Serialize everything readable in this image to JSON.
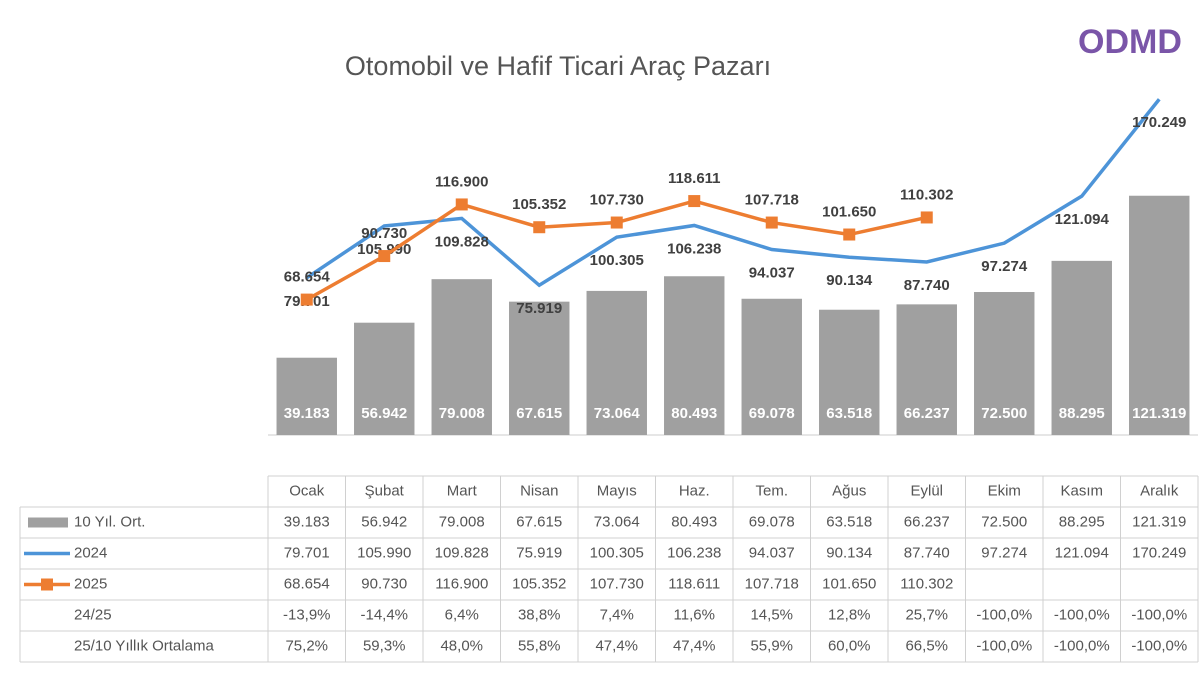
{
  "logo": "ODMD",
  "chart_data": {
    "type": "bar",
    "title": "Otomobil ve Hafif Ticari Araç Pazarı",
    "categories": [
      "Ocak",
      "Şubat",
      "Mart",
      "Nisan",
      "Mayıs",
      "Haz.",
      "Tem.",
      "Ağus",
      "Eylül",
      "Ekim",
      "Kasım",
      "Aralık"
    ],
    "ylim": [
      0,
      180000
    ],
    "series": [
      {
        "name": "10 Yıl. Ort.",
        "type": "bar",
        "color": "#a0a0a0",
        "values": [
          39183,
          56942,
          79008,
          67615,
          73064,
          80493,
          69078,
          63518,
          66237,
          72500,
          88295,
          121319
        ],
        "value_labels": [
          "39.183",
          "56.942",
          "79.008",
          "67.615",
          "73.064",
          "80.493",
          "69.078",
          "63.518",
          "66.237",
          "72.500",
          "88.295",
          "121.319"
        ]
      },
      {
        "name": "2024",
        "type": "line",
        "color": "#4d94d8",
        "values": [
          79701,
          105990,
          109828,
          75919,
          100305,
          106238,
          94037,
          90134,
          87740,
          97274,
          121094,
          170249
        ],
        "value_labels": [
          "79.701",
          "105.990",
          "109.828",
          "75.919",
          "100.305",
          "106.238",
          "94.037",
          "90.134",
          "87.740",
          "97.274",
          "121.094",
          "170.249"
        ]
      },
      {
        "name": "2025",
        "type": "line",
        "marker": "square",
        "color": "#ed7d31",
        "values": [
          68654,
          90730,
          116900,
          105352,
          107730,
          118611,
          107718,
          101650,
          110302,
          null,
          null,
          null
        ],
        "value_labels": [
          "68.654",
          "90.730",
          "116.900",
          "105.352",
          "107.730",
          "118.611",
          "107.718",
          "101.650",
          "110.302",
          null,
          null,
          null
        ]
      }
    ],
    "table": {
      "rows": [
        {
          "label": "24/25",
          "cells": [
            "-13,9%",
            "-14,4%",
            "6,4%",
            "38,8%",
            "7,4%",
            "11,6%",
            "14,5%",
            "12,8%",
            "25,7%",
            "-100,0%",
            "-100,0%",
            "-100,0%"
          ]
        },
        {
          "label": "25/10 Yıllık Ortalama",
          "cells": [
            "75,2%",
            "59,3%",
            "48,0%",
            "55,8%",
            "47,4%",
            "47,4%",
            "55,9%",
            "60,0%",
            "66,5%",
            "-100,0%",
            "-100,0%",
            "-100,0%"
          ]
        }
      ]
    }
  }
}
